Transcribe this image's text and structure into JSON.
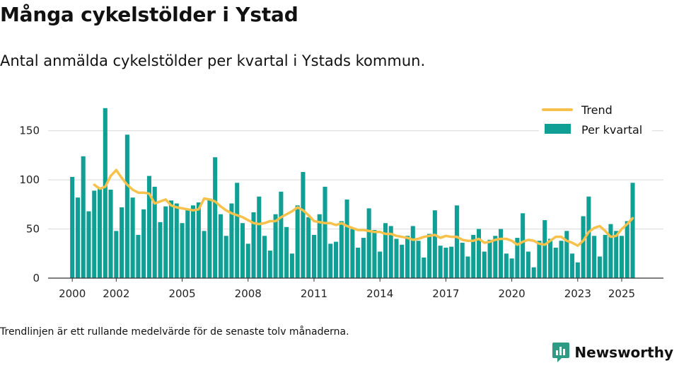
{
  "header": {
    "title": "Många cykelstölder i Ystad",
    "subtitle": "Antal anmälda cykelstölder per kvartal i Ystads kommun."
  },
  "footer": {
    "note": "Trendlinjen är ett rullande medelvärde för de senaste tolv månaderna.",
    "brand": "Newsworthy"
  },
  "colors": {
    "bar": "#109f94",
    "trend": "#f7c14c",
    "grid": "#d9d9d9",
    "axis": "#333333",
    "brand": "#2e9b84"
  },
  "chart_data": {
    "type": "bar",
    "title": "Många cykelstölder i Ystad",
    "xlabel": "",
    "ylabel": "",
    "ylim": [
      0,
      175
    ],
    "yticks": [
      0,
      50,
      100,
      150
    ],
    "xticks": [
      {
        "label": "2000",
        "x": 2000.0
      },
      {
        "label": "2002",
        "x": 2002.0
      },
      {
        "label": "2005",
        "x": 2005.0
      },
      {
        "label": "2008",
        "x": 2008.0
      },
      {
        "label": "2011",
        "x": 2011.0
      },
      {
        "label": "2014",
        "x": 2014.0
      },
      {
        "label": "2017",
        "x": 2017.0
      },
      {
        "label": "2020",
        "x": 2020.0
      },
      {
        "label": "2023",
        "x": 2023.0
      },
      {
        "label": "2025",
        "x": 2025.0
      }
    ],
    "xrange": [
      1998.9,
      2026.9
    ],
    "period": {
      "start_year": 2000,
      "start_quarter": 1,
      "quarters_per_year": 4
    },
    "legend": {
      "placement": "top-right",
      "trend_label": "Trend",
      "bar_label": "Per kvartal"
    },
    "series": [
      {
        "name": "Per kvartal",
        "kind": "bar",
        "values": [
          103,
          82,
          124,
          68,
          89,
          92,
          173,
          90,
          48,
          72,
          146,
          82,
          44,
          70,
          104,
          93,
          57,
          73,
          79,
          76,
          56,
          69,
          74,
          77,
          48,
          81,
          123,
          65,
          43,
          76,
          97,
          56,
          35,
          67,
          83,
          43,
          28,
          65,
          88,
          52,
          25,
          74,
          108,
          62,
          44,
          65,
          93,
          35,
          37,
          58,
          80,
          50,
          31,
          41,
          71,
          49,
          27,
          56,
          53,
          40,
          34,
          43,
          53,
          38,
          21,
          45,
          69,
          33,
          31,
          32,
          74,
          36,
          22,
          44,
          50,
          27,
          39,
          43,
          50,
          25,
          20,
          41,
          66,
          27,
          11,
          38,
          59,
          40,
          31,
          38,
          48,
          25,
          16,
          63,
          83,
          43,
          22,
          44,
          55,
          48,
          43,
          58,
          97
        ]
      },
      {
        "name": "Trend",
        "kind": "line",
        "start_index": 4,
        "values": [
          95,
          91,
          93,
          104,
          110,
          102,
          95,
          90,
          87,
          87,
          86,
          76,
          78,
          80,
          74,
          72,
          71,
          70,
          69,
          70,
          81,
          80,
          78,
          73,
          69,
          66,
          64,
          62,
          59,
          56,
          55,
          56,
          58,
          58,
          62,
          65,
          68,
          72,
          69,
          64,
          58,
          57,
          56,
          56,
          54,
          56,
          53,
          51,
          49,
          49,
          48,
          47,
          47,
          45,
          45,
          43,
          42,
          41,
          39,
          40,
          42,
          43,
          44,
          41,
          43,
          42,
          42,
          39,
          38,
          38,
          40,
          36,
          37,
          39,
          40,
          40,
          38,
          34,
          37,
          39,
          38,
          35,
          34,
          38,
          42,
          42,
          38,
          36,
          33,
          38,
          47,
          51,
          53,
          48,
          42,
          43,
          50,
          55,
          61
        ]
      }
    ]
  }
}
